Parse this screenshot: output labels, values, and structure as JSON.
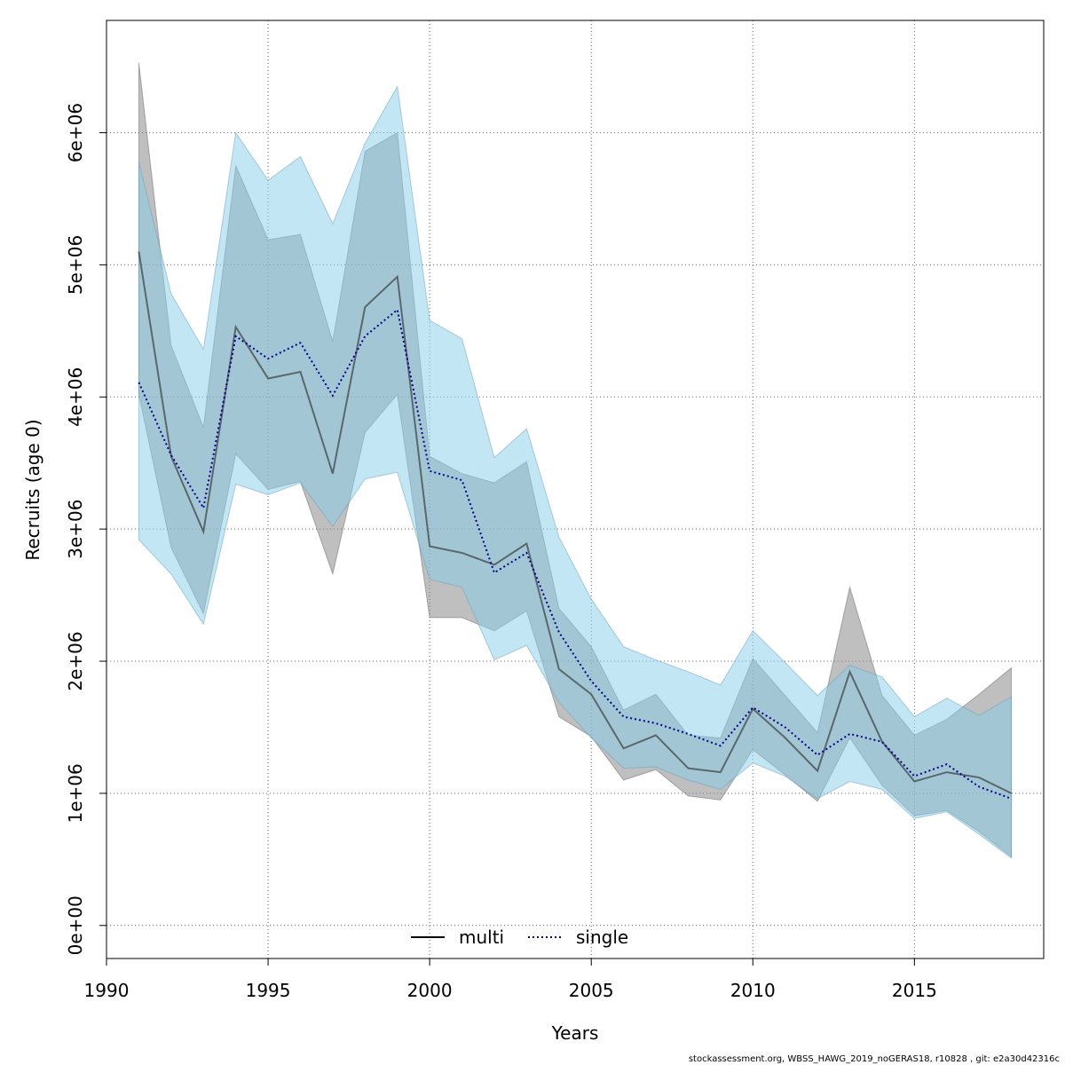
{
  "chart_data": {
    "type": "line",
    "xlabel": "Years",
    "ylabel": "Recruits (age 0)",
    "xlim": [
      1990,
      2019
    ],
    "ylim": [
      -250000,
      6850000
    ],
    "x_ticks": [
      1990,
      1995,
      2000,
      2005,
      2010,
      2015
    ],
    "x_tick_labels": [
      "1990",
      "1995",
      "2000",
      "2005",
      "2010",
      "2015"
    ],
    "y_ticks": [
      0,
      1000000,
      2000000,
      3000000,
      4000000,
      5000000,
      6000000
    ],
    "y_tick_labels": [
      "0e+00",
      "1e+06",
      "2e+06",
      "3e+06",
      "4e+06",
      "5e+06",
      "6e+06"
    ],
    "grid": true,
    "legend_position": "bottom-center",
    "footer": "stockassessment.org, WBSS_HAWG_2019_noGERAS18, r10828 , git: e2a30d42316c",
    "x": [
      1991,
      1992,
      1993,
      1994,
      1995,
      1996,
      1997,
      1998,
      1999,
      2000,
      2001,
      2002,
      2003,
      2004,
      2005,
      2006,
      2007,
      2008,
      2009,
      2010,
      2011,
      2012,
      2013,
      2014,
      2015,
      2016,
      2017,
      2018
    ],
    "series": [
      {
        "name": "multi",
        "line_style": "solid",
        "line_color": "#000000",
        "band_color": "#808080",
        "values": [
          5100000,
          3550000,
          2980000,
          4530000,
          4140000,
          4190000,
          3420000,
          4680000,
          4910000,
          2870000,
          2820000,
          2730000,
          2890000,
          1940000,
          1750000,
          1340000,
          1440000,
          1190000,
          1160000,
          1640000,
          1420000,
          1170000,
          1920000,
          1390000,
          1090000,
          1160000,
          1120000,
          1000000
        ],
        "lower": [
          4020000,
          2860000,
          2360000,
          3570000,
          3300000,
          3360000,
          2660000,
          3730000,
          4020000,
          2330000,
          2330000,
          2230000,
          2380000,
          1580000,
          1430000,
          1100000,
          1180000,
          980000,
          950000,
          1330000,
          1140000,
          940000,
          1420000,
          1060000,
          830000,
          870000,
          710000,
          520000
        ],
        "upper": [
          6530000,
          4390000,
          3770000,
          5750000,
          5190000,
          5230000,
          4420000,
          5860000,
          6000000,
          3550000,
          3420000,
          3350000,
          3510000,
          2400000,
          2110000,
          1630000,
          1750000,
          1440000,
          1420000,
          2020000,
          1740000,
          1460000,
          2560000,
          1740000,
          1440000,
          1560000,
          1750000,
          1950000
        ]
      },
      {
        "name": "single",
        "line_style": "dotted",
        "line_color": "#00008b",
        "band_color": "#87ceeb",
        "values": [
          4110000,
          3560000,
          3160000,
          4460000,
          4290000,
          4410000,
          4010000,
          4460000,
          4660000,
          3440000,
          3370000,
          2670000,
          2820000,
          2220000,
          1850000,
          1580000,
          1530000,
          1450000,
          1360000,
          1650000,
          1500000,
          1290000,
          1450000,
          1390000,
          1130000,
          1220000,
          1050000,
          960000
        ],
        "lower": [
          2920000,
          2660000,
          2280000,
          3340000,
          3260000,
          3350000,
          3020000,
          3380000,
          3430000,
          2620000,
          2560000,
          2010000,
          2120000,
          1690000,
          1420000,
          1190000,
          1200000,
          1100000,
          1030000,
          1230000,
          1130000,
          960000,
          1090000,
          1030000,
          810000,
          860000,
          690000,
          510000
        ],
        "upper": [
          5780000,
          4780000,
          4360000,
          6000000,
          5640000,
          5820000,
          5310000,
          5920000,
          6350000,
          4580000,
          4440000,
          3540000,
          3760000,
          2940000,
          2470000,
          2110000,
          2010000,
          1920000,
          1820000,
          2230000,
          1990000,
          1740000,
          1970000,
          1880000,
          1580000,
          1720000,
          1590000,
          1730000
        ]
      }
    ]
  }
}
